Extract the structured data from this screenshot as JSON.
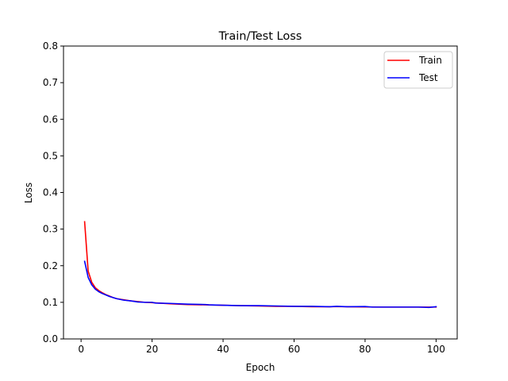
{
  "chart_data": {
    "type": "line",
    "title": "Train/Test Loss",
    "xlabel": "Epoch",
    "ylabel": "Loss",
    "xlim": [
      -4.95,
      105.95
    ],
    "ylim": [
      0.0,
      0.8
    ],
    "xticks": [
      0,
      20,
      40,
      60,
      80,
      100
    ],
    "yticks": [
      0.0,
      0.1,
      0.2,
      0.3,
      0.4,
      0.5,
      0.6,
      0.7,
      0.8
    ],
    "grid": false,
    "legend_position": "top-right",
    "series": [
      {
        "name": "Train",
        "color": "#ff0000",
        "points": [
          [
            1,
            0.32
          ],
          [
            2,
            0.185
          ],
          [
            3,
            0.155
          ],
          [
            4,
            0.14
          ],
          [
            5,
            0.132
          ],
          [
            6,
            0.126
          ],
          [
            7,
            0.121
          ],
          [
            8,
            0.117
          ],
          [
            9,
            0.113
          ],
          [
            10,
            0.11
          ],
          [
            12,
            0.107
          ],
          [
            14,
            0.104
          ],
          [
            16,
            0.102
          ],
          [
            18,
            0.1
          ],
          [
            20,
            0.099
          ],
          [
            25,
            0.096
          ],
          [
            30,
            0.094
          ],
          [
            35,
            0.093
          ],
          [
            40,
            0.092
          ],
          [
            45,
            0.091
          ],
          [
            50,
            0.09
          ],
          [
            55,
            0.089
          ],
          [
            60,
            0.089
          ],
          [
            65,
            0.088
          ],
          [
            70,
            0.088
          ],
          [
            72,
            0.0885
          ],
          [
            75,
            0.088
          ],
          [
            80,
            0.0875
          ],
          [
            85,
            0.087
          ],
          [
            90,
            0.087
          ],
          [
            95,
            0.087
          ],
          [
            100,
            0.087
          ]
        ]
      },
      {
        "name": "Test",
        "color": "#0000ff",
        "points": [
          [
            1,
            0.212
          ],
          [
            2,
            0.168
          ],
          [
            3,
            0.148
          ],
          [
            4,
            0.136
          ],
          [
            5,
            0.129
          ],
          [
            6,
            0.124
          ],
          [
            7,
            0.12
          ],
          [
            8,
            0.116
          ],
          [
            9,
            0.113
          ],
          [
            10,
            0.11
          ],
          [
            12,
            0.106
          ],
          [
            14,
            0.104
          ],
          [
            16,
            0.101
          ],
          [
            18,
            0.1
          ],
          [
            20,
            0.1
          ],
          [
            21,
            0.098
          ],
          [
            25,
            0.097
          ],
          [
            30,
            0.095
          ],
          [
            35,
            0.094
          ],
          [
            36,
            0.093
          ],
          [
            40,
            0.092
          ],
          [
            45,
            0.091
          ],
          [
            50,
            0.091
          ],
          [
            55,
            0.09
          ],
          [
            60,
            0.089
          ],
          [
            65,
            0.089
          ],
          [
            70,
            0.088
          ],
          [
            72,
            0.089
          ],
          [
            75,
            0.088
          ],
          [
            80,
            0.0885
          ],
          [
            82,
            0.087
          ],
          [
            85,
            0.087
          ],
          [
            90,
            0.087
          ],
          [
            95,
            0.087
          ],
          [
            98,
            0.086
          ],
          [
            100,
            0.088
          ]
        ]
      }
    ]
  }
}
